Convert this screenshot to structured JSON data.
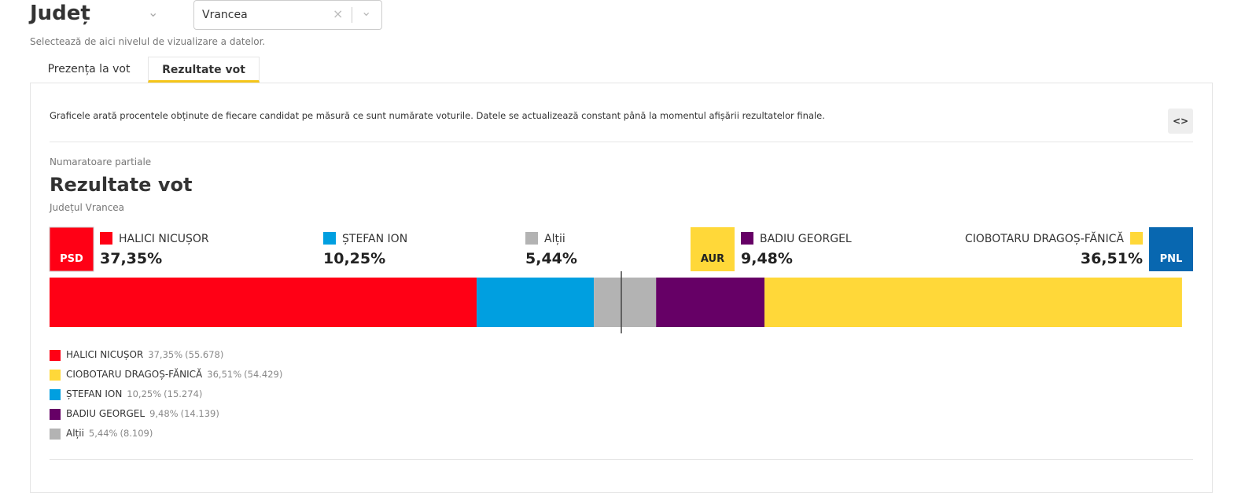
{
  "header": {
    "title": "Județ",
    "select_value": "Vrancea",
    "hint": "Selectează de aici nivelul de vizualizare a datelor."
  },
  "tabs": [
    "Prezența la vot",
    "Rezultate vot"
  ],
  "description": "Graficele arată procentele obținute de fiecare candidat pe măsură ce sunt numărate voturile. Datele se actualizează constant până la momentul afișării rezultatelor finale.",
  "code_button": "<>",
  "panel": {
    "overline": "Numaratoare partiale",
    "title": "Rezultate vot",
    "subtitle": "Județul Vrancea"
  },
  "chart_data": {
    "type": "stacked-bar",
    "xlim": [
      0,
      100
    ],
    "threshold": 50,
    "series": [
      {
        "name": "HALICI NICUȘOR",
        "color": "#ff0015",
        "values": [
          37.35
        ],
        "value_labels": [
          "37,35%"
        ],
        "logo": "PSD"
      },
      {
        "name": "ȘTEFAN ION",
        "color": "#009fe0",
        "values": [
          10.25
        ],
        "value_labels": [
          "10,25%"
        ]
      },
      {
        "name": "Alții",
        "color": "#b3b3b3",
        "values": [
          5.44
        ],
        "value_labels": [
          "5,44%"
        ]
      },
      {
        "name": "BADIU GEORGEL",
        "color": "#660066",
        "values": [
          9.48
        ],
        "value_labels": [
          "9,48%"
        ],
        "logo": "AUR"
      },
      {
        "name": "CIOBOTARU DRAGOȘ-FĂNICĂ",
        "color": "#ffd839",
        "values": [
          36.51
        ],
        "value_labels": [
          "36,51%"
        ],
        "logo": "PNL"
      }
    ]
  },
  "legend": [
    {
      "name": "HALICI NICUȘOR",
      "color": "#ff0015",
      "percent": "37,35%",
      "votes": 55678,
      "votes_label": "(55.678)"
    },
    {
      "name": "CIOBOTARU DRAGOȘ-FĂNICĂ",
      "color": "#ffd839",
      "percent": "36,51%",
      "votes": 54429,
      "votes_label": "(54.429)"
    },
    {
      "name": "ȘTEFAN ION",
      "color": "#009fe0",
      "percent": "10,25%",
      "votes": 15274,
      "votes_label": "(15.274)"
    },
    {
      "name": "BADIU GEORGEL",
      "color": "#660066",
      "percent": "9,48%",
      "votes": 14139,
      "votes_label": "(14.139)"
    },
    {
      "name": "Alții",
      "color": "#b3b3b3",
      "percent": "5,44%",
      "votes": 8109,
      "votes_label": "(8.109)"
    }
  ]
}
